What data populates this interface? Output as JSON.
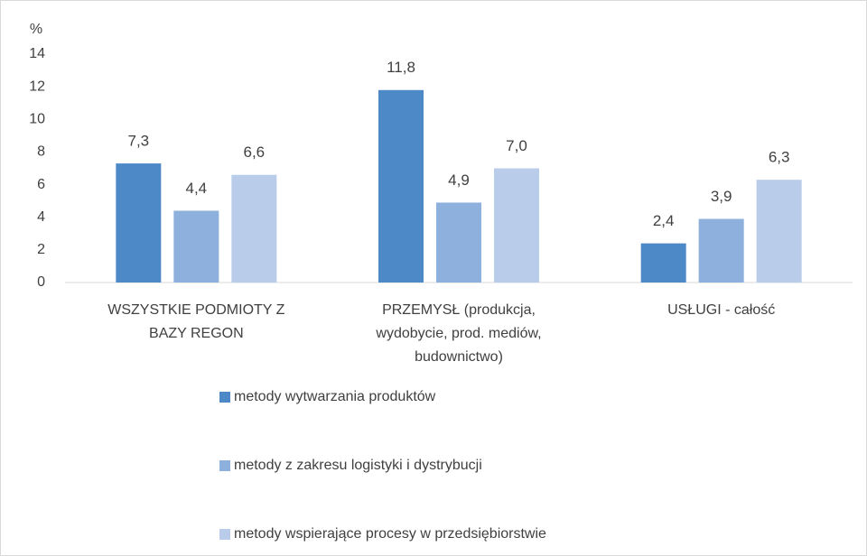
{
  "chart_data": {
    "type": "bar",
    "y_label": "%",
    "categories": [
      "WSZYSTKIE PODMIOTY Z BAZY REGON",
      "PRZEMYSŁ (produkcja, wydobycie, prod. mediów, budownictwo)",
      "USŁUGI - całość"
    ],
    "series": [
      {
        "name": "metody wytwarzania produktów",
        "color": "#4e89c7",
        "values": [
          7.3,
          11.8,
          2.4
        ],
        "value_labels": [
          "7,3",
          "11,8",
          "2,4"
        ]
      },
      {
        "name": "metody z zakresu logistyki i dystrybucji",
        "color": "#8db0dd",
        "values": [
          4.4,
          4.9,
          3.9
        ],
        "value_labels": [
          "4,4",
          "4,9",
          "3,9"
        ]
      },
      {
        "name": "metody wspierające procesy w przedsiębiorstwie",
        "color": "#b9cdea",
        "values": [
          6.6,
          7.0,
          6.3
        ],
        "value_labels": [
          "6,6",
          "7,0",
          "6,3"
        ]
      }
    ],
    "ylim": [
      0,
      14
    ],
    "yticks": [
      0,
      2,
      4,
      6,
      8,
      10,
      12,
      14
    ],
    "grid": false,
    "legend": "bottom"
  }
}
